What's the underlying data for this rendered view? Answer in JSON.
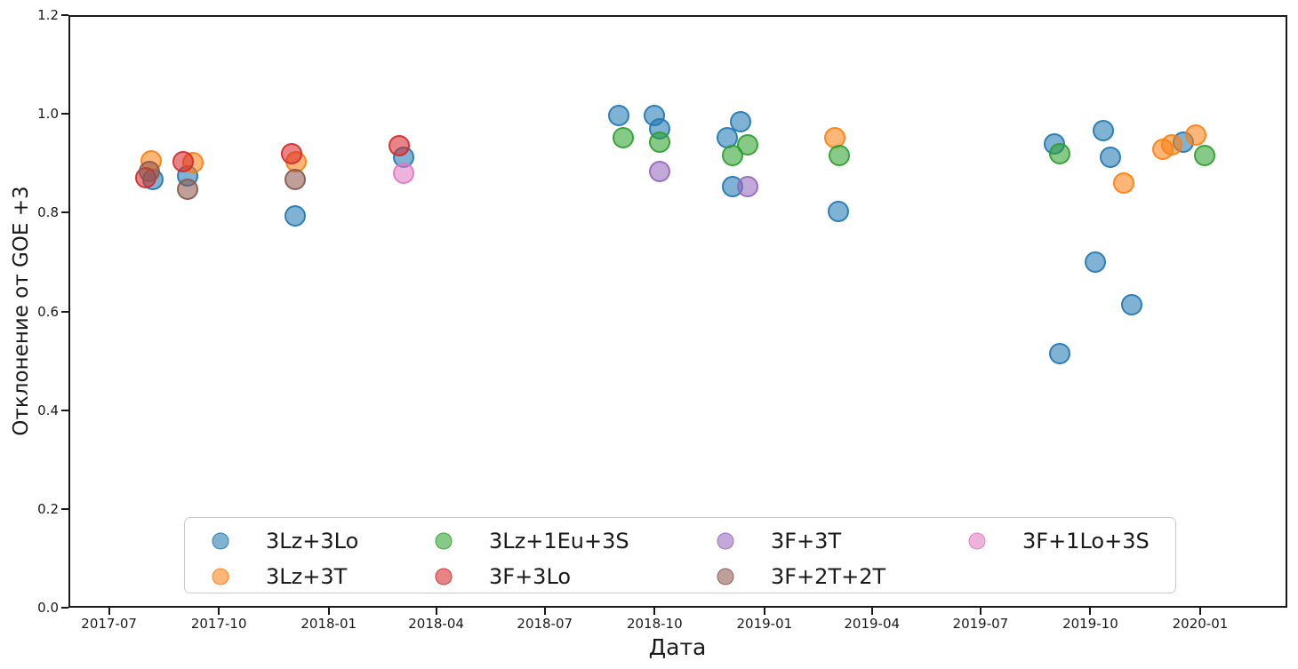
{
  "chart_data": {
    "type": "scatter",
    "title": "",
    "xlabel": "Дата",
    "ylabel": "Отклонение от GOE +3",
    "x_ticks": [
      "2017-07",
      "2017-10",
      "2018-01",
      "2018-04",
      "2018-07",
      "2018-10",
      "2019-01",
      "2019-04",
      "2019-07",
      "2019-10",
      "2020-01"
    ],
    "y_ticks": [
      0.0,
      0.2,
      0.4,
      0.6,
      0.8,
      1.0,
      1.2
    ],
    "x_domain": [
      "2017-05-28",
      "2020-03-14"
    ],
    "y_domain": [
      0,
      1.2
    ],
    "grid": false,
    "legend_position": "lower center",
    "legend_columns": 4,
    "marker_alpha": 0.57,
    "series": [
      {
        "name": "3Lz+3Lo",
        "color": "#1f77b4",
        "points": [
          [
            "2017-08-07",
            0.867
          ],
          [
            "2017-09-05",
            0.874
          ],
          [
            "2017-12-04",
            0.793
          ],
          [
            "2018-03-05",
            0.912
          ],
          [
            "2018-09-01",
            0.997
          ],
          [
            "2018-10-01",
            0.997
          ],
          [
            "2018-10-05",
            0.97
          ],
          [
            "2018-12-01",
            0.952
          ],
          [
            "2018-12-12",
            0.984
          ],
          [
            "2018-12-05",
            0.853
          ],
          [
            "2019-03-04",
            0.802
          ],
          [
            "2019-09-01",
            0.939
          ],
          [
            "2019-09-05",
            0.515
          ],
          [
            "2019-10-05",
            0.7
          ],
          [
            "2019-10-12",
            0.966
          ],
          [
            "2019-10-18",
            0.912
          ],
          [
            "2019-11-05",
            0.614
          ],
          [
            "2019-12-18",
            0.943
          ]
        ]
      },
      {
        "name": "3Lz+3T",
        "color": "#ff7f0e",
        "points": [
          [
            "2017-08-05",
            0.905
          ],
          [
            "2017-09-09",
            0.901
          ],
          [
            "2017-12-05",
            0.903
          ],
          [
            "2019-03-01",
            0.952
          ],
          [
            "2019-10-29",
            0.86
          ],
          [
            "2019-12-01",
            0.928
          ],
          [
            "2019-12-08",
            0.937
          ],
          [
            "2019-12-28",
            0.957
          ]
        ]
      },
      {
        "name": "3Lz+1Eu+3S",
        "color": "#2ca02c",
        "points": [
          [
            "2018-09-05",
            0.952
          ],
          [
            "2018-10-05",
            0.943
          ],
          [
            "2018-12-05",
            0.916
          ],
          [
            "2018-12-18",
            0.937
          ],
          [
            "2019-03-05",
            0.916
          ],
          [
            "2019-09-05",
            0.919
          ],
          [
            "2020-01-05",
            0.916
          ]
        ]
      },
      {
        "name": "3F+3Lo",
        "color": "#d62728",
        "points": [
          [
            "2017-08-01",
            0.871
          ],
          [
            "2017-09-01",
            0.903
          ],
          [
            "2017-12-01",
            0.919
          ],
          [
            "2018-03-01",
            0.936
          ]
        ]
      },
      {
        "name": "3F+3T",
        "color": "#9467bd",
        "points": [
          [
            "2018-10-05",
            0.883
          ],
          [
            "2018-12-18",
            0.853
          ]
        ]
      },
      {
        "name": "3F+2T+2T",
        "color": "#8c564b",
        "points": [
          [
            "2017-08-04",
            0.883
          ],
          [
            "2017-09-05",
            0.847
          ],
          [
            "2017-12-04",
            0.867
          ]
        ]
      },
      {
        "name": "3F+1Lo+3S",
        "color": "#e377c2",
        "points": [
          [
            "2018-03-05",
            0.88
          ]
        ]
      }
    ]
  }
}
